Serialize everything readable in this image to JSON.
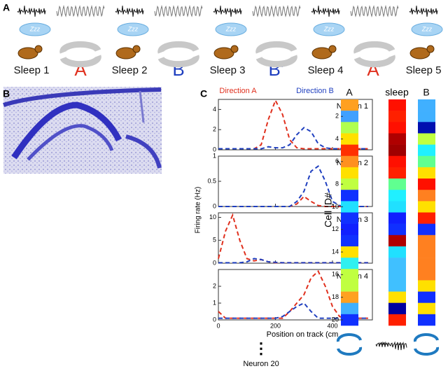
{
  "panel_a": {
    "label": "A",
    "zzz": "Zzz",
    "sessions": [
      {
        "label": "Sleep 1",
        "kind": "sleep",
        "color": "#111111"
      },
      {
        "label": "A",
        "kind": "run",
        "color": "#e0301e"
      },
      {
        "label": "Sleep 2",
        "kind": "sleep",
        "color": "#111111"
      },
      {
        "label": "B",
        "kind": "run",
        "color": "#1f3fbf"
      },
      {
        "label": "Sleep 3",
        "kind": "sleep",
        "color": "#111111"
      },
      {
        "label": "B’",
        "kind": "run",
        "color": "#1f3fbf"
      },
      {
        "label": "Sleep 4",
        "kind": "sleep",
        "color": "#111111"
      },
      {
        "label": "A’",
        "kind": "run",
        "color": "#e0301e"
      },
      {
        "label": "Sleep 5",
        "kind": "sleep",
        "color": "#111111"
      }
    ]
  },
  "panel_b": {
    "label": "B"
  },
  "panel_c": {
    "label": "C",
    "y_label": "Firing rate (Hz)",
    "x_label": "Position on track (cm",
    "more": "⋮",
    "last_neuron": "Neuron 20",
    "legend": [
      {
        "name": "Direction A",
        "color": "#e0301e"
      },
      {
        "name": "Direction B",
        "color": "#1f3fbf"
      }
    ],
    "x": [
      0,
      25,
      50,
      75,
      100,
      125,
      150,
      175,
      200,
      225,
      250,
      275,
      300,
      325,
      350,
      375,
      400,
      425,
      450,
      475,
      500,
      525
    ],
    "xlim": [
      0,
      540
    ],
    "xticks": [
      0,
      200,
      400
    ],
    "charts": [
      {
        "type": "line",
        "title": "Neuron 1",
        "ylim": [
          0,
          5
        ],
        "yticks": [
          0,
          2,
          4
        ],
        "series": [
          {
            "values": [
              0.1,
              0.1,
              0.1,
              0.1,
              0.1,
              0.1,
              0.5,
              3,
              4.9,
              3.5,
              1,
              0.2,
              0.1,
              0.1,
              0.1,
              0.1,
              0.1,
              0.1,
              0.1,
              0.1,
              0.1,
              0.1
            ]
          },
          {
            "values": [
              0.1,
              0.1,
              0.1,
              0.1,
              0.1,
              0.1,
              0.1,
              0.3,
              0.2,
              0.2,
              0.5,
              1.5,
              2.2,
              1.8,
              0.6,
              0.2,
              0.1,
              0.1,
              0.2,
              0.1,
              0.1,
              0.1
            ]
          }
        ]
      },
      {
        "type": "line",
        "title": "Neuron 2",
        "ylim": [
          0,
          1
        ],
        "yticks": [
          0,
          0.5,
          1
        ],
        "series": [
          {
            "values": [
              0,
              0,
              0,
              0,
              0,
              0,
              0,
              0,
              0,
              0,
              0,
              0.05,
              0.2,
              0.1,
              0.02,
              0,
              0,
              0,
              0,
              0,
              0,
              0
            ]
          },
          {
            "values": [
              0,
              0,
              0,
              0,
              0,
              0,
              0,
              0,
              0,
              0,
              0,
              0.1,
              0.3,
              0.7,
              0.8,
              0.5,
              0.1,
              0.02,
              0,
              0,
              0,
              0
            ]
          }
        ]
      },
      {
        "type": "line",
        "title": "Neuron 3",
        "ylim": [
          0,
          11
        ],
        "yticks": [
          0,
          5,
          10
        ],
        "series": [
          {
            "values": [
              1,
              7,
              10.5,
              5,
              1,
              0.5,
              0.8,
              0.3,
              0.1,
              0.1,
              0.1,
              0.1,
              0.1,
              0.1,
              0.1,
              0.1,
              0.1,
              0.1,
              0.1,
              0.1,
              0.1,
              0.1
            ]
          },
          {
            "values": [
              0.1,
              0.1,
              0.1,
              0.1,
              0.3,
              1,
              0.8,
              0.3,
              0.2,
              0.1,
              0.1,
              0.1,
              0.1,
              0.1,
              0.1,
              0.1,
              0.1,
              0.1,
              0.1,
              0.1,
              0.1,
              0.1
            ]
          }
        ]
      },
      {
        "type": "line",
        "title": "Neuron 4",
        "ylim": [
          0,
          3
        ],
        "yticks": [
          0,
          1,
          2
        ],
        "series": [
          {
            "values": [
              0.5,
              0.1,
              0.1,
              0.1,
              0.1,
              0.1,
              0.1,
              0.1,
              0.1,
              0.1,
              0.5,
              1,
              1.5,
              2.5,
              2.9,
              2,
              0.8,
              0.2,
              0.1,
              0.1,
              0.1,
              0.1
            ]
          },
          {
            "values": [
              0.1,
              0.1,
              0.1,
              0.1,
              0.1,
              0.1,
              0.1,
              0.1,
              0.1,
              0.2,
              0.5,
              0.8,
              1,
              0.5,
              0.1,
              0.1,
              0.1,
              0.1,
              0.1,
              0.1,
              0.1,
              0.1
            ]
          }
        ]
      }
    ]
  },
  "panel_d": {
    "y_label": "Cell ID#",
    "ylim": [
      0.5,
      20.5
    ],
    "yticks": [
      2,
      4,
      6,
      8,
      10,
      12,
      14,
      16,
      18,
      20
    ],
    "columns": [
      {
        "name": "A",
        "colors": [
          "#ffa020",
          "#40a0ff",
          "#b0ff50",
          "#ffe000",
          "#ff3000",
          "#ff9020",
          "#ffe000",
          "#c0ff40",
          "#1030ff",
          "#20e0ff",
          "#1030ff",
          "#1020ff",
          "#1030ff",
          "#ffe000",
          "#30f0f0",
          "#c0ff40",
          "#c0ff40",
          "#ffa020",
          "#40b0ff",
          "#1030ff"
        ]
      },
      {
        "name": "sleep",
        "colors": [
          "#ff1000",
          "#ff2000",
          "#ff1000",
          "#b00000",
          "#a00000",
          "#ff1000",
          "#ff2000",
          "#60ff90",
          "#20f0ff",
          "#20e0ff",
          "#1020ff",
          "#1030ff",
          "#b00000",
          "#20e0ff",
          "#40c0ff",
          "#40c0ff",
          "#40c0ff",
          "#ffe000",
          "#0000a0",
          "#ff2000"
        ]
      },
      {
        "name": "B",
        "colors": [
          "#40b0ff",
          "#40b0ff",
          "#0010b0",
          "#c0ff40",
          "#20f0ff",
          "#60ff90",
          "#ffe000",
          "#ff1000",
          "#ff8020",
          "#ffe000",
          "#ff2000",
          "#1030ff",
          "#ff8020",
          "#ff8020",
          "#ff8020",
          "#ff8020",
          "#ffe000",
          "#1030ff",
          "#ffe000",
          "#1030ff"
        ]
      }
    ]
  }
}
